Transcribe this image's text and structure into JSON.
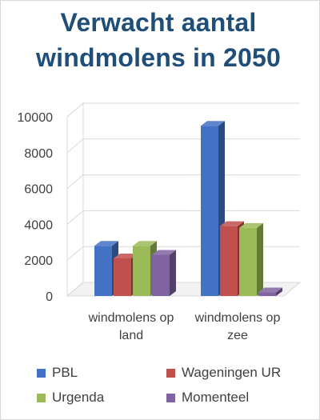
{
  "chart_data": {
    "type": "bar",
    "title": "Verwacht aantal windmolens in 2050",
    "categories": [
      "windmolens op land",
      "windmolens op zee"
    ],
    "category_lines": [
      [
        "windmolens op",
        "land"
      ],
      [
        "windmolens op",
        "zee"
      ]
    ],
    "series": [
      {
        "name": "PBL",
        "values": [
          2800,
          9500
        ],
        "color": "#4472c4"
      },
      {
        "name": "Wageningen UR",
        "values": [
          2100,
          3900
        ],
        "color": "#c0504d"
      },
      {
        "name": "Urgenda",
        "values": [
          2800,
          3800
        ],
        "color": "#9bbb59"
      },
      {
        "name": "Momenteel",
        "values": [
          2300,
          200
        ],
        "color": "#8064a2"
      }
    ],
    "ylim": [
      0,
      10000
    ],
    "yticks": [
      "0",
      "2000",
      "4000",
      "6000",
      "8000",
      "10000"
    ],
    "grid": true,
    "legend": "bottom"
  }
}
